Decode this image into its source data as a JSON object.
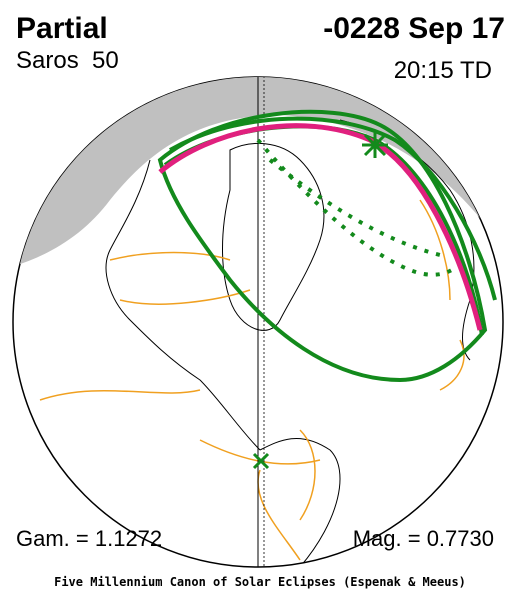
{
  "header": {
    "type": "Partial",
    "saros": "Saros  50",
    "date": "-0228 Sep 17",
    "time": "20:15 TD"
  },
  "footer": {
    "gamma": "Gam. = 1.1272",
    "magnitude": "Mag. = 0.7730",
    "credit": "Five Millennium Canon of Solar Eclipses (Espenak & Meeus)"
  }
}
